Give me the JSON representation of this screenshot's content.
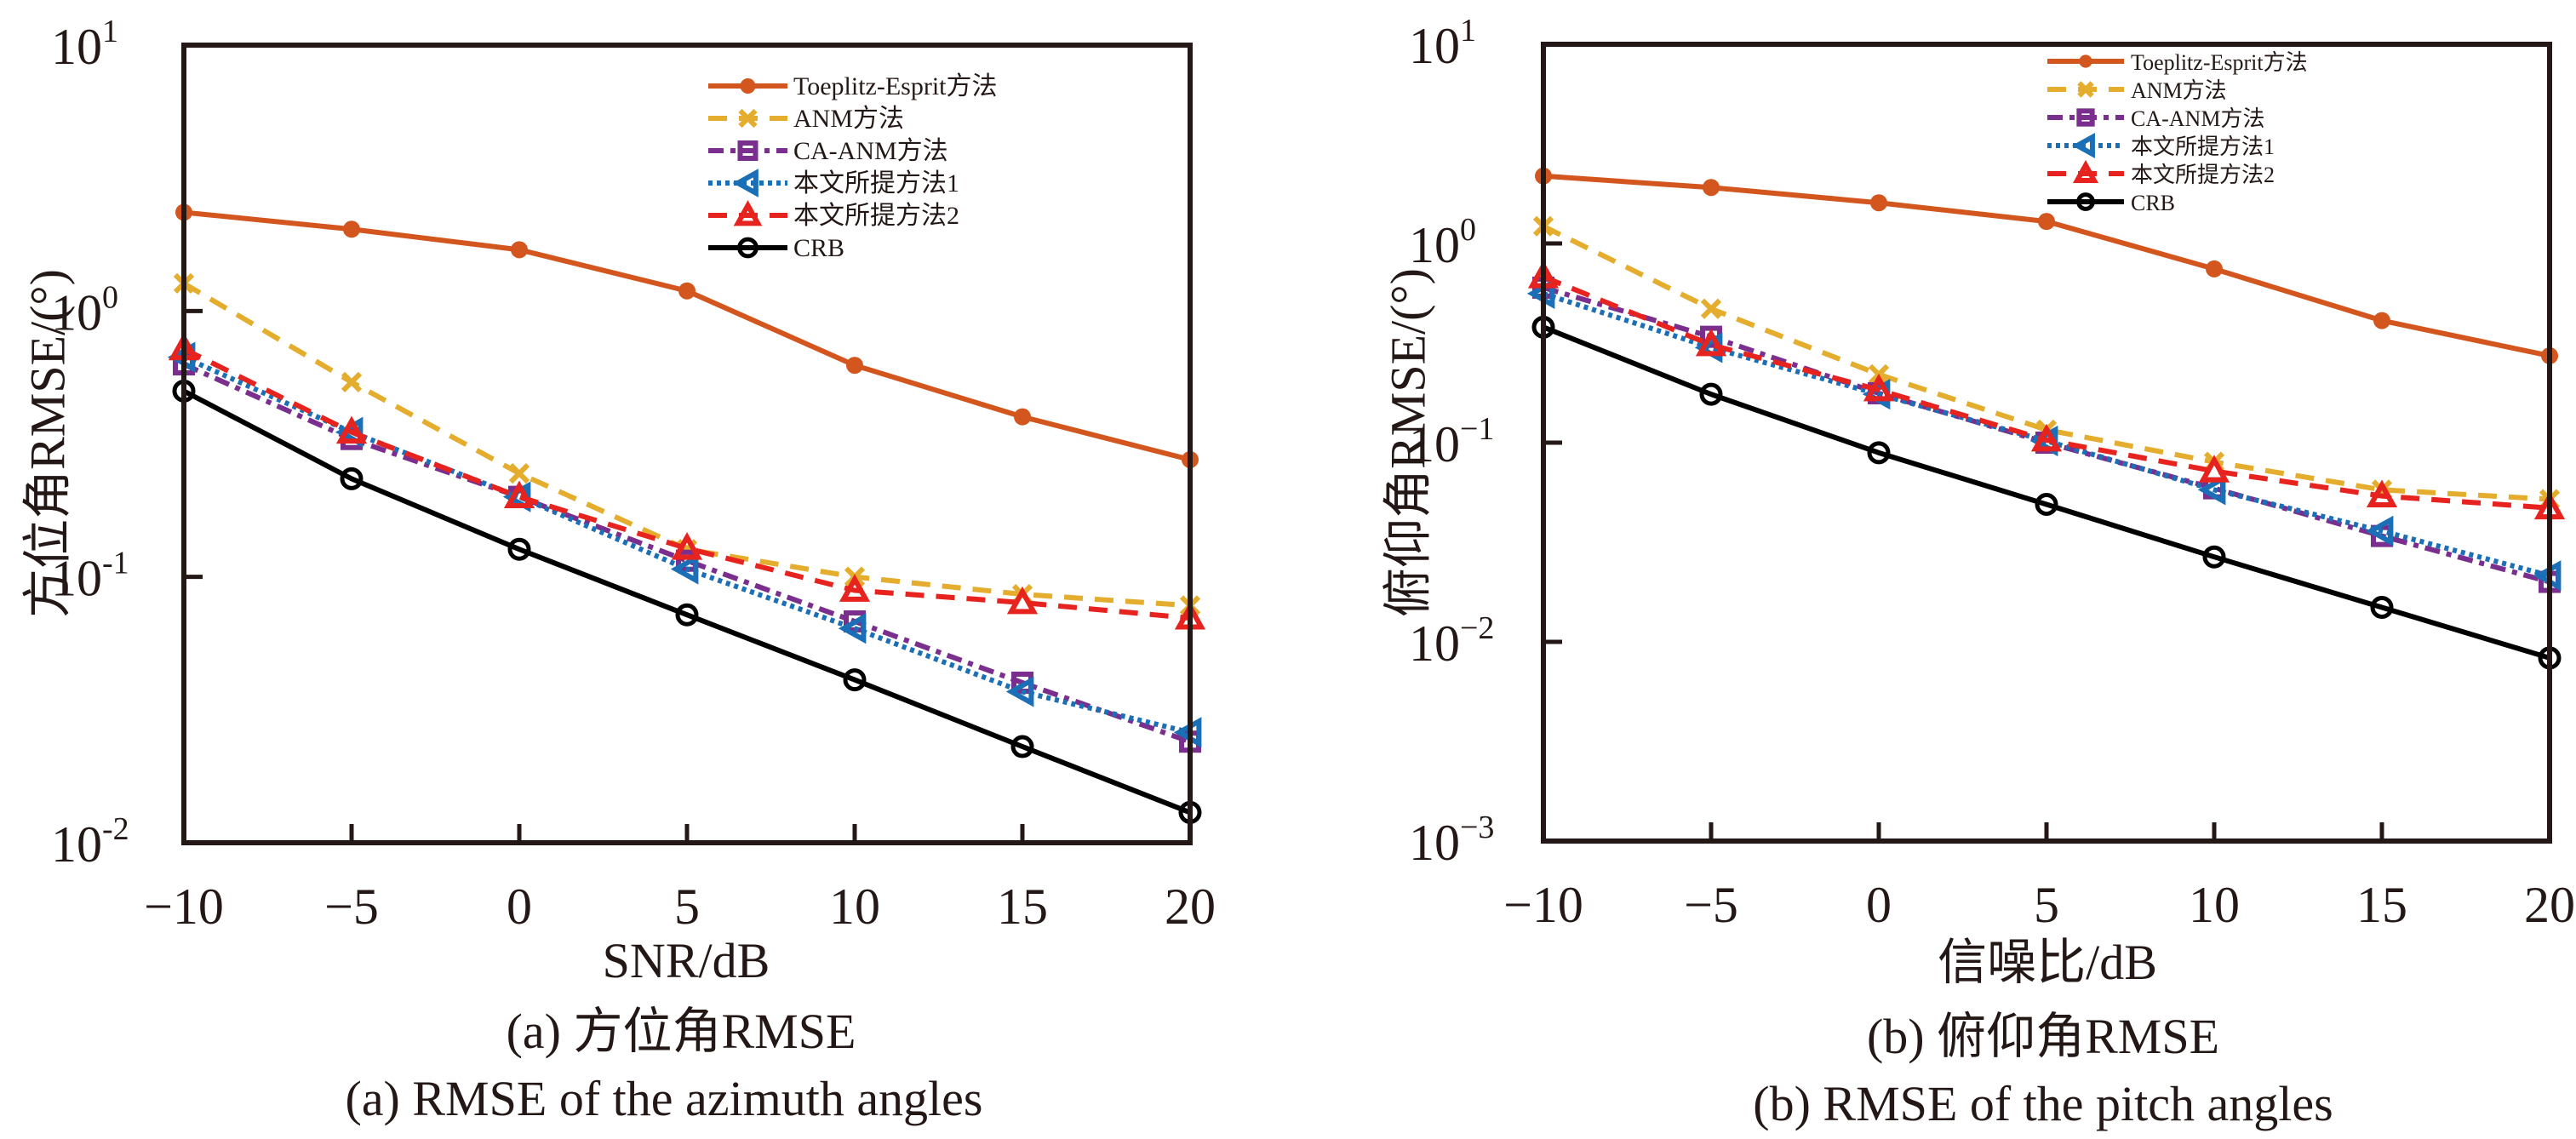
{
  "chart_data": [
    {
      "id": "a",
      "type": "line",
      "yscale": "log",
      "title": "",
      "xlabel": "SNR/dB",
      "ylabel": "方位角RMSE/(°)",
      "caption_cn": "(a) 方位角RMSE",
      "caption_en": "(a) RMSE of the azimuth angles",
      "x": [
        -10,
        -5,
        0,
        5,
        10,
        15,
        20
      ],
      "xlim": [
        -10,
        20
      ],
      "xticks": [
        "−10",
        "−5",
        "0",
        "5",
        "10",
        "15",
        "20"
      ],
      "ylim": [
        0.01,
        10
      ],
      "yticks": [
        {
          "base": "10",
          "exp": "1"
        },
        {
          "base": "10",
          "exp": "0"
        },
        {
          "base": "10",
          "exp": "-1"
        },
        {
          "base": "10",
          "exp": "-2"
        }
      ],
      "grid": false,
      "legend_position": "top-right",
      "series": [
        {
          "name": "Toeplitz-Esprit方法",
          "key": "toeplitz",
          "values": [
            2.35,
            2.03,
            1.7,
            1.19,
            0.625,
            0.4,
            0.276
          ]
        },
        {
          "name": "ANM方法",
          "key": "anm",
          "values": [
            1.27,
            0.54,
            0.245,
            0.127,
            0.1,
            0.086,
            0.078
          ]
        },
        {
          "name": "CA-ANM方法",
          "key": "caanm",
          "values": [
            0.63,
            0.33,
            0.2,
            0.115,
            0.068,
            0.04,
            0.024
          ]
        },
        {
          "name": "本文所提方法1",
          "key": "prop1",
          "values": [
            0.67,
            0.35,
            0.2,
            0.107,
            0.064,
            0.037,
            0.026
          ]
        },
        {
          "name": "本文所提方法2",
          "key": "prop2",
          "values": [
            0.72,
            0.35,
            0.2,
            0.128,
            0.089,
            0.08,
            0.07
          ]
        },
        {
          "name": "CRB",
          "key": "crb",
          "values": [
            0.5,
            0.234,
            0.127,
            0.072,
            0.041,
            0.023,
            0.013
          ]
        }
      ]
    },
    {
      "id": "b",
      "type": "line",
      "yscale": "log",
      "title": "",
      "xlabel": "信噪比/dB",
      "ylabel": "俯仰角RMSE/(°)",
      "caption_cn": "(b) 俯仰角RMSE",
      "caption_en": "(b) RMSE of the pitch angles",
      "x": [
        -10,
        -5,
        0,
        5,
        10,
        15,
        20
      ],
      "xlim": [
        -10,
        20
      ],
      "xticks": [
        "−10",
        "−5",
        "0",
        "5",
        "10",
        "15",
        "20"
      ],
      "ylim": [
        0.001,
        10
      ],
      "yticks": [
        {
          "base": "10",
          "exp": "1"
        },
        {
          "base": "10",
          "exp": "0"
        },
        {
          "base": "10",
          "exp": "−1"
        },
        {
          "base": "10",
          "exp": "−2"
        },
        {
          "base": "10",
          "exp": "−3"
        }
      ],
      "grid": false,
      "legend_position": "top-right",
      "series": [
        {
          "name": "Toeplitz-Esprit方法",
          "key": "toeplitz",
          "values": [
            2.18,
            1.91,
            1.6,
            1.29,
            0.745,
            0.41,
            0.273
          ]
        },
        {
          "name": "ANM方法",
          "key": "anm",
          "values": [
            1.22,
            0.47,
            0.22,
            0.116,
            0.08,
            0.058,
            0.052
          ]
        },
        {
          "name": "CA-ANM方法",
          "key": "caanm",
          "values": [
            0.6,
            0.34,
            0.177,
            0.1,
            0.059,
            0.034,
            0.02
          ]
        },
        {
          "name": "本文所提方法1",
          "key": "prop1",
          "values": [
            0.56,
            0.3,
            0.175,
            0.102,
            0.058,
            0.036,
            0.0215
          ]
        },
        {
          "name": "本文所提方法2",
          "key": "prop2",
          "values": [
            0.68,
            0.31,
            0.184,
            0.103,
            0.072,
            0.054,
            0.047
          ]
        },
        {
          "name": "CRB",
          "key": "crb",
          "values": [
            0.38,
            0.175,
            0.089,
            0.049,
            0.0267,
            0.0149,
            0.0083
          ]
        }
      ]
    }
  ],
  "series_styles": {
    "toeplitz": {
      "color": "#D4561F",
      "dash": "",
      "marker": "filled-circle"
    },
    "anm": {
      "color": "#E4AD2D",
      "dash": "dashed",
      "marker": "x"
    },
    "caanm": {
      "color": "#7A2E8D",
      "dash": "dashdot",
      "marker": "square"
    },
    "prop1": {
      "color": "#1A6FB6",
      "dash": "dotted",
      "marker": "left-triangle"
    },
    "prop2": {
      "color": "#E6231F",
      "dash": "dashed",
      "marker": "triangle"
    },
    "crb": {
      "color": "#000000",
      "dash": "",
      "marker": "open-circle"
    }
  }
}
